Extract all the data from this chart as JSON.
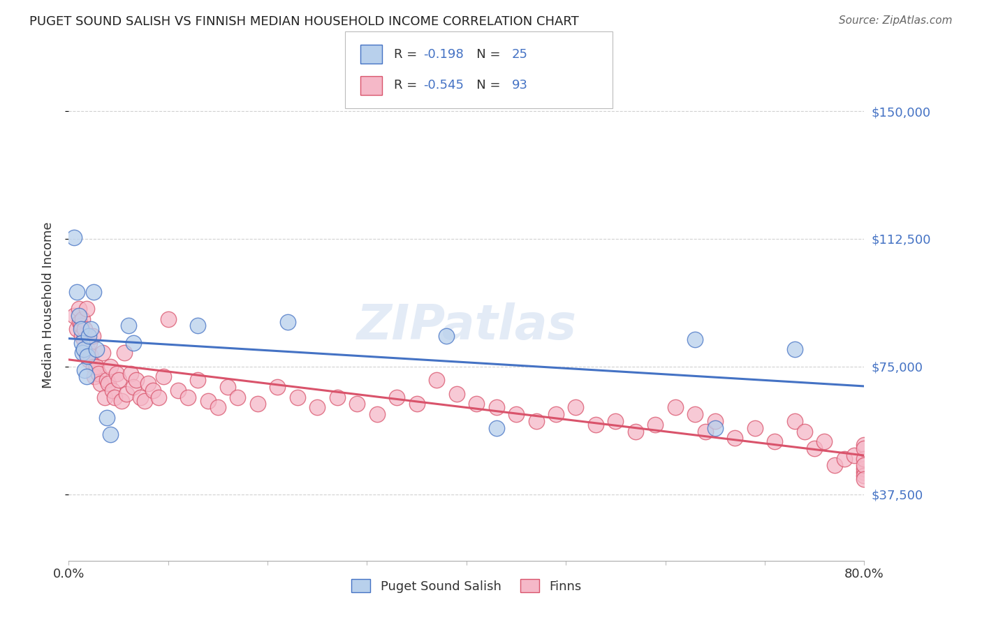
{
  "title": "PUGET SOUND SALISH VS FINNISH MEDIAN HOUSEHOLD INCOME CORRELATION CHART",
  "source": "Source: ZipAtlas.com",
  "ylabel": "Median Household Income",
  "xlim": [
    0.0,
    0.8
  ],
  "ylim": [
    18000,
    168000
  ],
  "yticks": [
    37500,
    75000,
    112500,
    150000
  ],
  "ytick_labels": [
    "$37,500",
    "$75,000",
    "$112,500",
    "$150,000"
  ],
  "xticks": [
    0.0,
    0.1,
    0.2,
    0.3,
    0.4,
    0.5,
    0.6,
    0.7,
    0.8
  ],
  "xtick_labels": [
    "0.0%",
    "",
    "",
    "",
    "",
    "",
    "",
    "",
    "80.0%"
  ],
  "color_salish": "#b8d0ec",
  "color_finns": "#f5b8c8",
  "color_line_salish": "#4472c4",
  "color_line_finns": "#d9536b",
  "color_blue": "#4472c4",
  "R_salish": -0.198,
  "N_salish": 25,
  "R_finns": -0.545,
  "N_finns": 93,
  "salish_x": [
    0.005,
    0.008,
    0.01,
    0.012,
    0.013,
    0.014,
    0.015,
    0.016,
    0.018,
    0.019,
    0.02,
    0.022,
    0.025,
    0.028,
    0.038,
    0.042,
    0.06,
    0.065,
    0.13,
    0.22,
    0.38,
    0.43,
    0.63,
    0.65,
    0.73
  ],
  "salish_y": [
    113000,
    97000,
    90000,
    86000,
    82000,
    79000,
    80000,
    74000,
    72000,
    78000,
    84000,
    86000,
    97000,
    80000,
    60000,
    55000,
    87000,
    82000,
    87000,
    88000,
    84000,
    57000,
    83000,
    57000,
    80000
  ],
  "finns_x": [
    0.005,
    0.008,
    0.01,
    0.011,
    0.012,
    0.013,
    0.014,
    0.015,
    0.016,
    0.017,
    0.018,
    0.019,
    0.02,
    0.021,
    0.022,
    0.024,
    0.025,
    0.026,
    0.028,
    0.03,
    0.032,
    0.034,
    0.036,
    0.038,
    0.04,
    0.042,
    0.044,
    0.046,
    0.048,
    0.05,
    0.053,
    0.056,
    0.058,
    0.062,
    0.065,
    0.068,
    0.072,
    0.076,
    0.08,
    0.085,
    0.09,
    0.095,
    0.1,
    0.11,
    0.12,
    0.13,
    0.14,
    0.15,
    0.16,
    0.17,
    0.19,
    0.21,
    0.23,
    0.25,
    0.27,
    0.29,
    0.31,
    0.33,
    0.35,
    0.37,
    0.39,
    0.41,
    0.43,
    0.45,
    0.47,
    0.49,
    0.51,
    0.53,
    0.55,
    0.57,
    0.59,
    0.61,
    0.63,
    0.64,
    0.65,
    0.67,
    0.69,
    0.71,
    0.73,
    0.74,
    0.75,
    0.76,
    0.77,
    0.78,
    0.79,
    0.8,
    0.8,
    0.8,
    0.8,
    0.8,
    0.8,
    0.8,
    0.8
  ],
  "finns_y": [
    90000,
    86000,
    92000,
    88000,
    87000,
    84000,
    89000,
    83000,
    86000,
    79000,
    92000,
    80000,
    77000,
    82000,
    78000,
    84000,
    75000,
    72000,
    75000,
    73000,
    70000,
    79000,
    66000,
    71000,
    70000,
    75000,
    68000,
    66000,
    73000,
    71000,
    65000,
    79000,
    67000,
    73000,
    69000,
    71000,
    66000,
    65000,
    70000,
    68000,
    66000,
    72000,
    89000,
    68000,
    66000,
    71000,
    65000,
    63000,
    69000,
    66000,
    64000,
    69000,
    66000,
    63000,
    66000,
    64000,
    61000,
    66000,
    64000,
    71000,
    67000,
    64000,
    63000,
    61000,
    59000,
    61000,
    63000,
    58000,
    59000,
    56000,
    58000,
    63000,
    61000,
    56000,
    59000,
    54000,
    57000,
    53000,
    59000,
    56000,
    51000,
    53000,
    46000,
    48000,
    49000,
    44000,
    52000,
    45000,
    48000,
    43000,
    51000,
    46000,
    42000
  ]
}
